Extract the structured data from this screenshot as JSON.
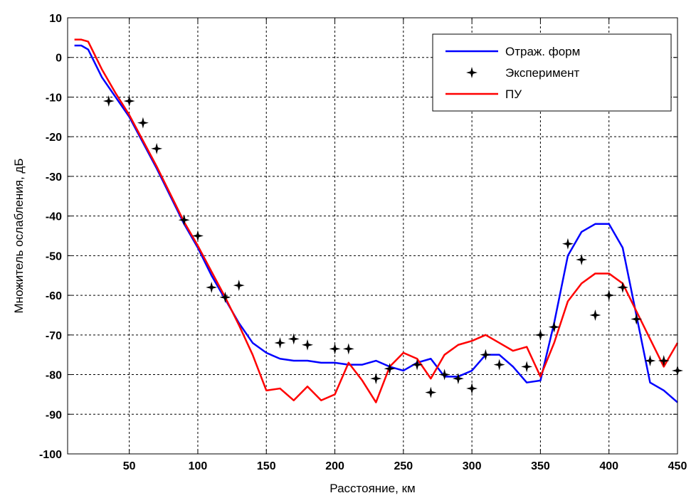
{
  "chart_data": {
    "type": "line",
    "xlabel": "Расстояние, км",
    "ylabel": "Множитель ослабления, дБ",
    "xlim": [
      5,
      450
    ],
    "ylim": [
      -100,
      10
    ],
    "xticks": [
      50,
      100,
      150,
      200,
      250,
      300,
      350,
      400,
      450
    ],
    "yticks": [
      10,
      0,
      -10,
      -20,
      -30,
      -40,
      -50,
      -60,
      -70,
      -80,
      -90,
      -100
    ],
    "grid": true,
    "legend_position": "top-right",
    "colors": {
      "reflect": "#0000ff",
      "experiment": "#000000",
      "pu": "#ff0000"
    },
    "series": [
      {
        "name": "Отраж. форм",
        "kind": "line",
        "x": [
          10,
          15,
          20,
          30,
          40,
          50,
          60,
          70,
          80,
          90,
          100,
          110,
          120,
          130,
          140,
          150,
          160,
          170,
          180,
          190,
          200,
          210,
          220,
          230,
          240,
          250,
          260,
          270,
          280,
          290,
          300,
          310,
          320,
          330,
          340,
          350,
          360,
          370,
          380,
          390,
          400,
          410,
          420,
          430,
          440,
          450
        ],
        "y": [
          3,
          3,
          2,
          -5,
          -10,
          -15,
          -21.5,
          -28,
          -35,
          -42,
          -48,
          -55,
          -61,
          -67,
          -72,
          -74.5,
          -76,
          -76.5,
          -76.5,
          -77,
          -77,
          -77.5,
          -77.5,
          -76.5,
          -78,
          -79,
          -77,
          -76,
          -80.5,
          -80.5,
          -79,
          -75,
          -75,
          -78,
          -82,
          -81.5,
          -67,
          -50,
          -44,
          -42,
          -42,
          -48,
          -65,
          -82,
          -84,
          -87
        ]
      },
      {
        "name": "Эксперимент",
        "kind": "scatter",
        "x": [
          35,
          50,
          60,
          70,
          90,
          100,
          110,
          120,
          130,
          160,
          170,
          180,
          200,
          210,
          230,
          240,
          260,
          270,
          280,
          290,
          300,
          310,
          320,
          340,
          350,
          360,
          370,
          380,
          390,
          400,
          410,
          420,
          430,
          440,
          450
        ],
        "y": [
          -11,
          -11,
          -16.5,
          -23,
          -41,
          -45,
          -58,
          -60.5,
          -57.5,
          -72,
          -71,
          -72.5,
          -73.5,
          -73.5,
          -81,
          -78.5,
          -77.5,
          -84.5,
          -80,
          -81,
          -83.5,
          -75,
          -77.5,
          -78,
          -70,
          -68,
          -47,
          -51,
          -65,
          -60,
          -58,
          -66,
          -76.5,
          -76.5,
          -79
        ]
      },
      {
        "name": "ПУ",
        "kind": "line",
        "x": [
          10,
          15,
          20,
          30,
          40,
          50,
          60,
          70,
          80,
          90,
          100,
          110,
          120,
          130,
          140,
          150,
          160,
          170,
          180,
          190,
          200,
          210,
          220,
          230,
          240,
          250,
          260,
          270,
          280,
          290,
          300,
          310,
          320,
          330,
          340,
          350,
          360,
          370,
          380,
          390,
          400,
          410,
          420,
          430,
          440,
          450
        ],
        "y": [
          4.5,
          4.5,
          4,
          -3,
          -9,
          -14.5,
          -21,
          -27.5,
          -34.5,
          -41.5,
          -47.5,
          -54,
          -60.5,
          -67.5,
          -75,
          -84,
          -83.5,
          -86.5,
          -83,
          -86.5,
          -85,
          -77,
          -81.5,
          -87,
          -78,
          -74.5,
          -76,
          -81,
          -75,
          -72.5,
          -71.5,
          -70,
          -72,
          -74,
          -73,
          -80.5,
          -72,
          -61.5,
          -57,
          -54.5,
          -54.5,
          -57,
          -64,
          -71,
          -78,
          -72
        ]
      }
    ]
  }
}
